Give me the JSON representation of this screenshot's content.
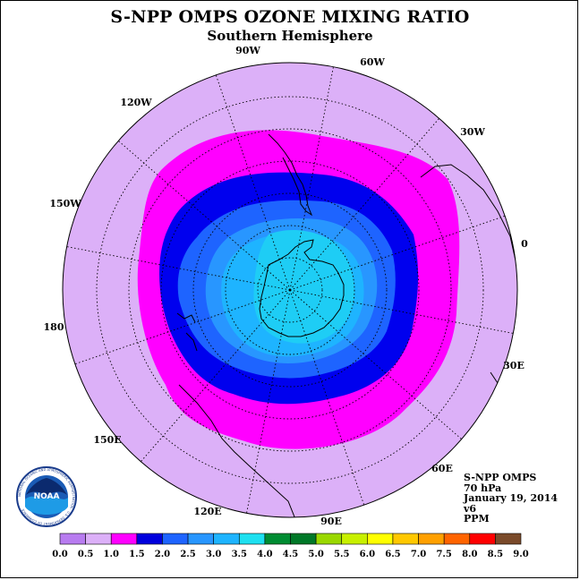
{
  "title": "S-NPP OMPS OZONE MIXING RATIO",
  "subtitle": "Southern Hemisphere",
  "longitude_labels": [
    {
      "lon": "90W"
    },
    {
      "lon": "60W"
    },
    {
      "lon": "30W"
    },
    {
      "lon": "0"
    },
    {
      "lon": "30E"
    },
    {
      "lon": "60E"
    },
    {
      "lon": "90E"
    },
    {
      "lon": "120E"
    },
    {
      "lon": "150E"
    },
    {
      "lon": "180"
    },
    {
      "lon": "150W"
    },
    {
      "lon": "120W"
    }
  ],
  "info": {
    "instrument": "S-NPP OMPS",
    "level": "70 hPa",
    "date": "January 19, 2014",
    "version": "v6",
    "units": "PPM"
  },
  "logo": {
    "text": "NOAA",
    "ring_text": "NATIONAL OCEANIC AND ATMOSPHERIC ADMINISTRATION · U.S. DEPARTMENT OF COMMERCE"
  },
  "colorbar": {
    "ticks": [
      "0.0",
      "0.5",
      "1.0",
      "1.5",
      "2.0",
      "2.5",
      "3.0",
      "3.5",
      "4.0",
      "4.5",
      "5.0",
      "5.5",
      "6.0",
      "6.5",
      "7.0",
      "7.5",
      "8.0",
      "8.5",
      "9.0"
    ],
    "colors": [
      "#b87cf0",
      "#dcb0f8",
      "#ff00ff",
      "#0000dd",
      "#1e64ff",
      "#2896ff",
      "#1eb4ff",
      "#1ee0f0",
      "#008c32",
      "#007828",
      "#9ad800",
      "#c8f000",
      "#ffff00",
      "#ffc800",
      "#ffa000",
      "#ff6400",
      "#ff0000",
      "#7a4a2a"
    ]
  },
  "map_colors": {
    "bin_0_5_1_0": "#dcb0f8",
    "bin_1_0_1_5": "#ff00ff",
    "bin_1_5_2_0": "#0000ee",
    "bin_2_0_2_5": "#1e64ff",
    "bin_2_5_3_0": "#2896ff",
    "bin_3_0_3_5": "#1eb4ff",
    "bin_3_5_4_0": "#1ecdf5"
  }
}
